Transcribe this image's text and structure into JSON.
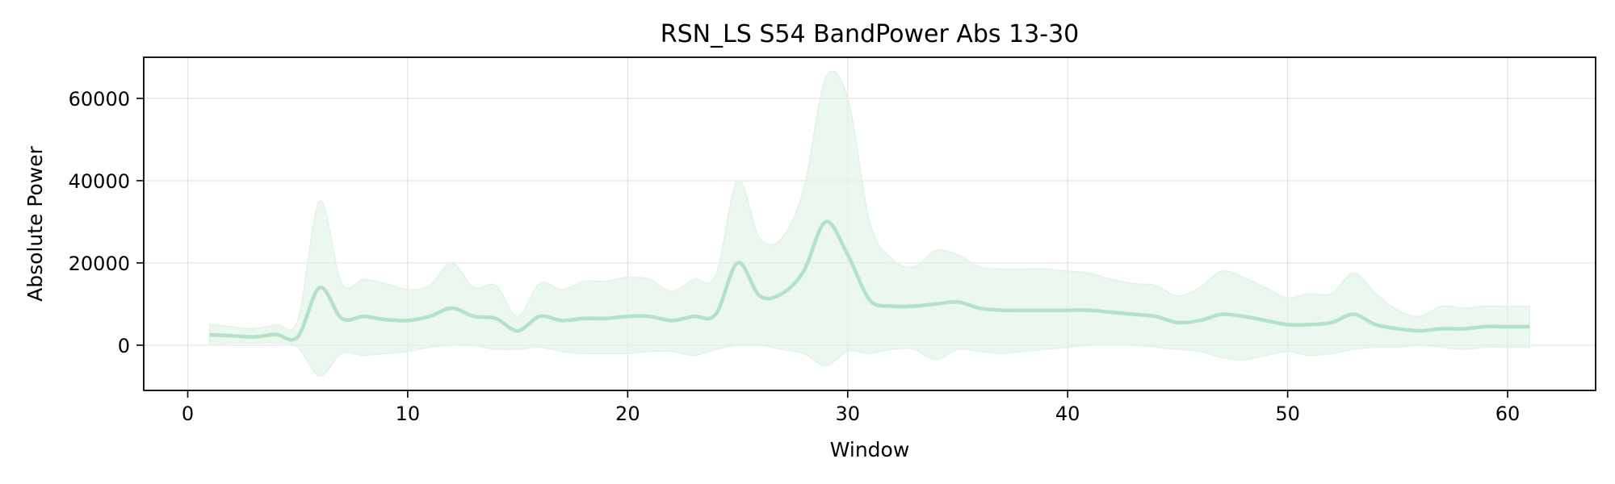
{
  "chart_data": {
    "type": "line",
    "title": "RSN_LS S54 BandPower Abs 13-30",
    "xlabel": "Window",
    "ylabel": "Absolute Power",
    "xlim": [
      -2,
      64
    ],
    "ylim": [
      -11000,
      70000
    ],
    "xticks": [
      0,
      10,
      20,
      30,
      40,
      50,
      60
    ],
    "yticks": [
      0,
      20000,
      40000,
      60000
    ],
    "grid": true,
    "line_color": "#b3e2c6",
    "band_color": "#e1f3e7",
    "series": [
      {
        "x": [
          1,
          2,
          3,
          4,
          5,
          6,
          7,
          8,
          9,
          10,
          11,
          12,
          13,
          14,
          15,
          16,
          17,
          18,
          19,
          20,
          21,
          22,
          23,
          24,
          25,
          26,
          27,
          28,
          29,
          30,
          31,
          32,
          33,
          34,
          35,
          36,
          37,
          38,
          39,
          40,
          41,
          42,
          43,
          44,
          45,
          46,
          47,
          48,
          49,
          50,
          51,
          52,
          53,
          54,
          55,
          56,
          57,
          58,
          59,
          60,
          61
        ],
        "values": [
          2500,
          2300,
          2000,
          2600,
          2000,
          14000,
          6500,
          7000,
          6200,
          6000,
          7000,
          9000,
          7000,
          6500,
          3500,
          7000,
          6000,
          6500,
          6500,
          7000,
          7000,
          6000,
          7000,
          7500,
          20000,
          12000,
          12500,
          18000,
          30000,
          22000,
          11000,
          9500,
          9500,
          10000,
          10500,
          9000,
          8500,
          8500,
          8500,
          8500,
          8500,
          8000,
          7500,
          7000,
          5500,
          6000,
          7500,
          7000,
          6000,
          5000,
          5000,
          5500,
          7500,
          5000,
          4000,
          3500,
          4000,
          4000,
          4500,
          4500,
          4500
        ],
        "upper": [
          5000,
          4500,
          4000,
          5000,
          6000,
          35000,
          15000,
          16000,
          15000,
          13500,
          14500,
          20000,
          14000,
          14500,
          7000,
          15000,
          13500,
          15500,
          15500,
          16500,
          16000,
          13000,
          16000,
          17000,
          40000,
          26000,
          26000,
          38000,
          65000,
          60000,
          30000,
          21000,
          19000,
          23000,
          22000,
          19000,
          18500,
          18500,
          18500,
          18000,
          17500,
          16000,
          15000,
          14500,
          12000,
          14000,
          18000,
          16500,
          14000,
          11500,
          12500,
          12500,
          17500,
          12500,
          8500,
          7000,
          9500,
          9000,
          9500,
          9500,
          9500
        ],
        "lower": [
          0,
          500,
          500,
          500,
          -500,
          -7500,
          -2000,
          -2500,
          -2000,
          -1500,
          -500,
          0,
          0,
          -1000,
          -1000,
          -500,
          -1500,
          -2000,
          -2000,
          -2000,
          -1500,
          -1500,
          -2500,
          -1000,
          0,
          0,
          -1000,
          -2000,
          -5000,
          -1500,
          -2000,
          -1000,
          -1000,
          -3500,
          -1000,
          -1500,
          -2000,
          -1500,
          -1000,
          -500,
          0,
          0,
          0,
          -500,
          -1000,
          -1500,
          -3000,
          -3500,
          -2500,
          -1500,
          -2500,
          -2000,
          -1000,
          -500,
          -500,
          0,
          -500,
          -1000,
          -500,
          -500,
          -500
        ]
      }
    ]
  }
}
